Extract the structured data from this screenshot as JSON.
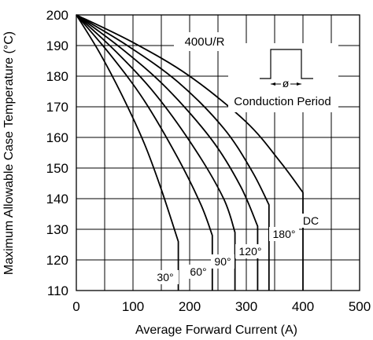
{
  "chart_data": {
    "type": "line",
    "title": "",
    "xlabel": "Average Forward Current (A)",
    "ylabel": "Maximum Allowable Case Temperature (°C)",
    "xlim": [
      0,
      500
    ],
    "ylim": [
      110,
      200
    ],
    "xticks": [
      "0",
      "100",
      "200",
      "300",
      "400",
      "500"
    ],
    "yticks": [
      "110",
      "120",
      "130",
      "140",
      "150",
      "160",
      "170",
      "180",
      "190",
      "200"
    ],
    "grid": true,
    "annotations": {
      "device": "400U/R",
      "conduction": "Conduction Period",
      "phi": "ø"
    },
    "series": [
      {
        "name": "30°",
        "x": [
          0,
          40,
          80,
          120,
          150,
          180,
          180
        ],
        "y": [
          200,
          188,
          174,
          158,
          143,
          126,
          110
        ]
      },
      {
        "name": "60°",
        "x": [
          0,
          60,
          120,
          180,
          220,
          240,
          240
        ],
        "y": [
          200,
          187,
          172,
          153,
          138,
          128,
          110
        ]
      },
      {
        "name": "90°",
        "x": [
          0,
          70,
          140,
          210,
          260,
          280,
          280
        ],
        "y": [
          200,
          188,
          174,
          156,
          140,
          129,
          110
        ]
      },
      {
        "name": "120°",
        "x": [
          0,
          80,
          160,
          240,
          290,
          320,
          320
        ],
        "y": [
          200,
          189,
          176,
          159,
          144,
          131,
          110
        ]
      },
      {
        "name": "180°",
        "x": [
          0,
          90,
          180,
          260,
          310,
          340,
          340
        ],
        "y": [
          200,
          190,
          178,
          163,
          149,
          138,
          110
        ]
      },
      {
        "name": "DC",
        "x": [
          0,
          100,
          200,
          300,
          360,
          400,
          400
        ],
        "y": [
          200,
          191,
          180,
          165,
          152,
          142,
          110
        ]
      }
    ]
  }
}
